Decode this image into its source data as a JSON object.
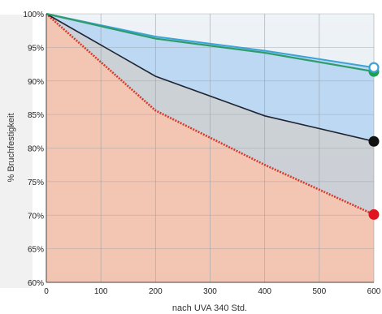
{
  "chart_data": {
    "type": "area",
    "xlabel": "nach UVA 340 Std.",
    "ylabel": "% Bruchfestigkeit",
    "xlim": [
      0,
      600
    ],
    "ylim": [
      60,
      100
    ],
    "x_ticks": [
      "0",
      "100",
      "200",
      "300",
      "400",
      "500",
      "600"
    ],
    "y_ticks": [
      "60%",
      "65%",
      "70%",
      "75%",
      "80%",
      "85%",
      "90%",
      "95%",
      "100%"
    ],
    "grid": true,
    "series": [
      {
        "color": "#2e9c6a",
        "marker": "#1aa04f",
        "x": [
          0,
          200,
          400,
          600
        ],
        "y": [
          100,
          96.3,
          94.2,
          91.4
        ]
      },
      {
        "color": "#3aa3d8",
        "marker": "#ffffff",
        "x": [
          0,
          200,
          400,
          600
        ],
        "y": [
          100,
          96.6,
          94.5,
          92
        ]
      },
      {
        "color": "#1f2533",
        "marker": "#111111",
        "x": [
          0,
          200,
          400,
          600
        ],
        "y": [
          100,
          90.7,
          84.8,
          81
        ]
      },
      {
        "color": "#d83a2a",
        "marker": "#e0141e",
        "x": [
          0,
          200,
          400,
          600
        ],
        "y": [
          100,
          85.6,
          77.5,
          70.1
        ]
      }
    ],
    "fill_colors": {
      "blue_band": "#b9d6f1",
      "gray_band": "#c9cdd3",
      "salmon_band": "#f3c2ae"
    }
  }
}
